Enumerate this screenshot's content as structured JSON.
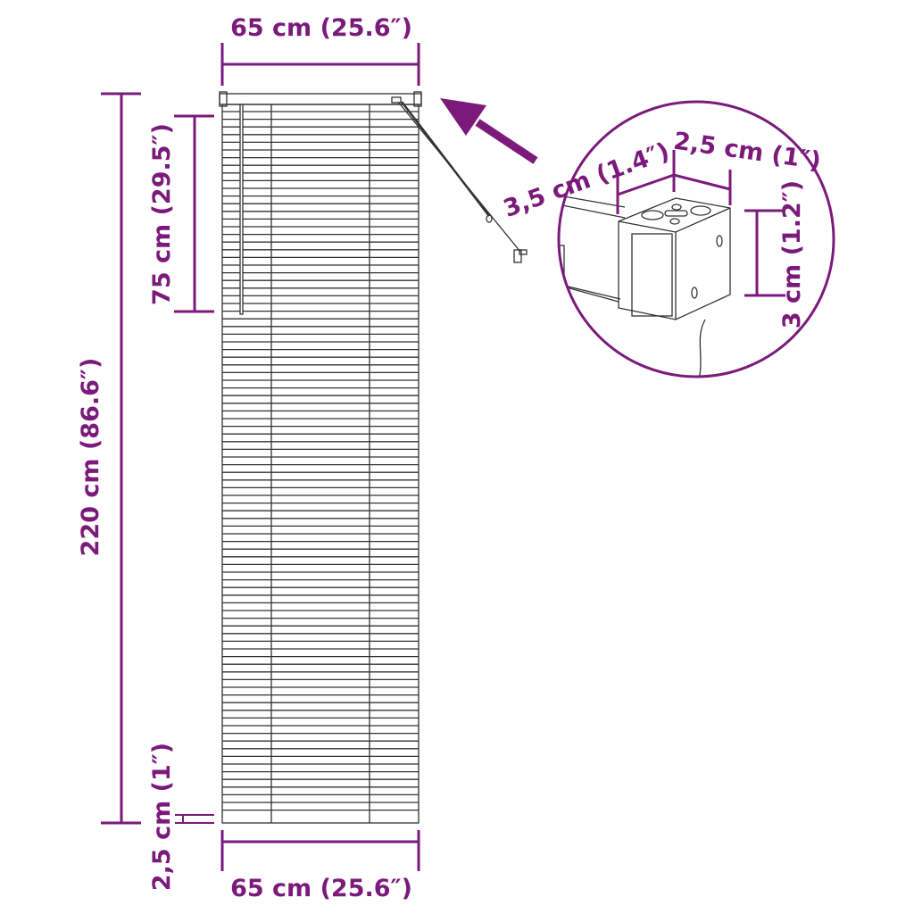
{
  "colors": {
    "dimension": "#7b1a7b",
    "line_art": "#333333"
  },
  "dimensions": {
    "top_width": "65 cm (25.6″)",
    "bottom_width": "65 cm (25.6″)",
    "total_height": "220 cm (86.6″)",
    "cord_length": "75 cm (29.5″)",
    "bottom_rail": "2,5 cm (1″)",
    "bracket_depth": "3,5 cm (1.4″)",
    "bracket_width": "2,5 cm (1″)",
    "bracket_height": "3 cm (1.2″)"
  },
  "icons": [
    "arrow-icon",
    "magnifier-circle"
  ]
}
